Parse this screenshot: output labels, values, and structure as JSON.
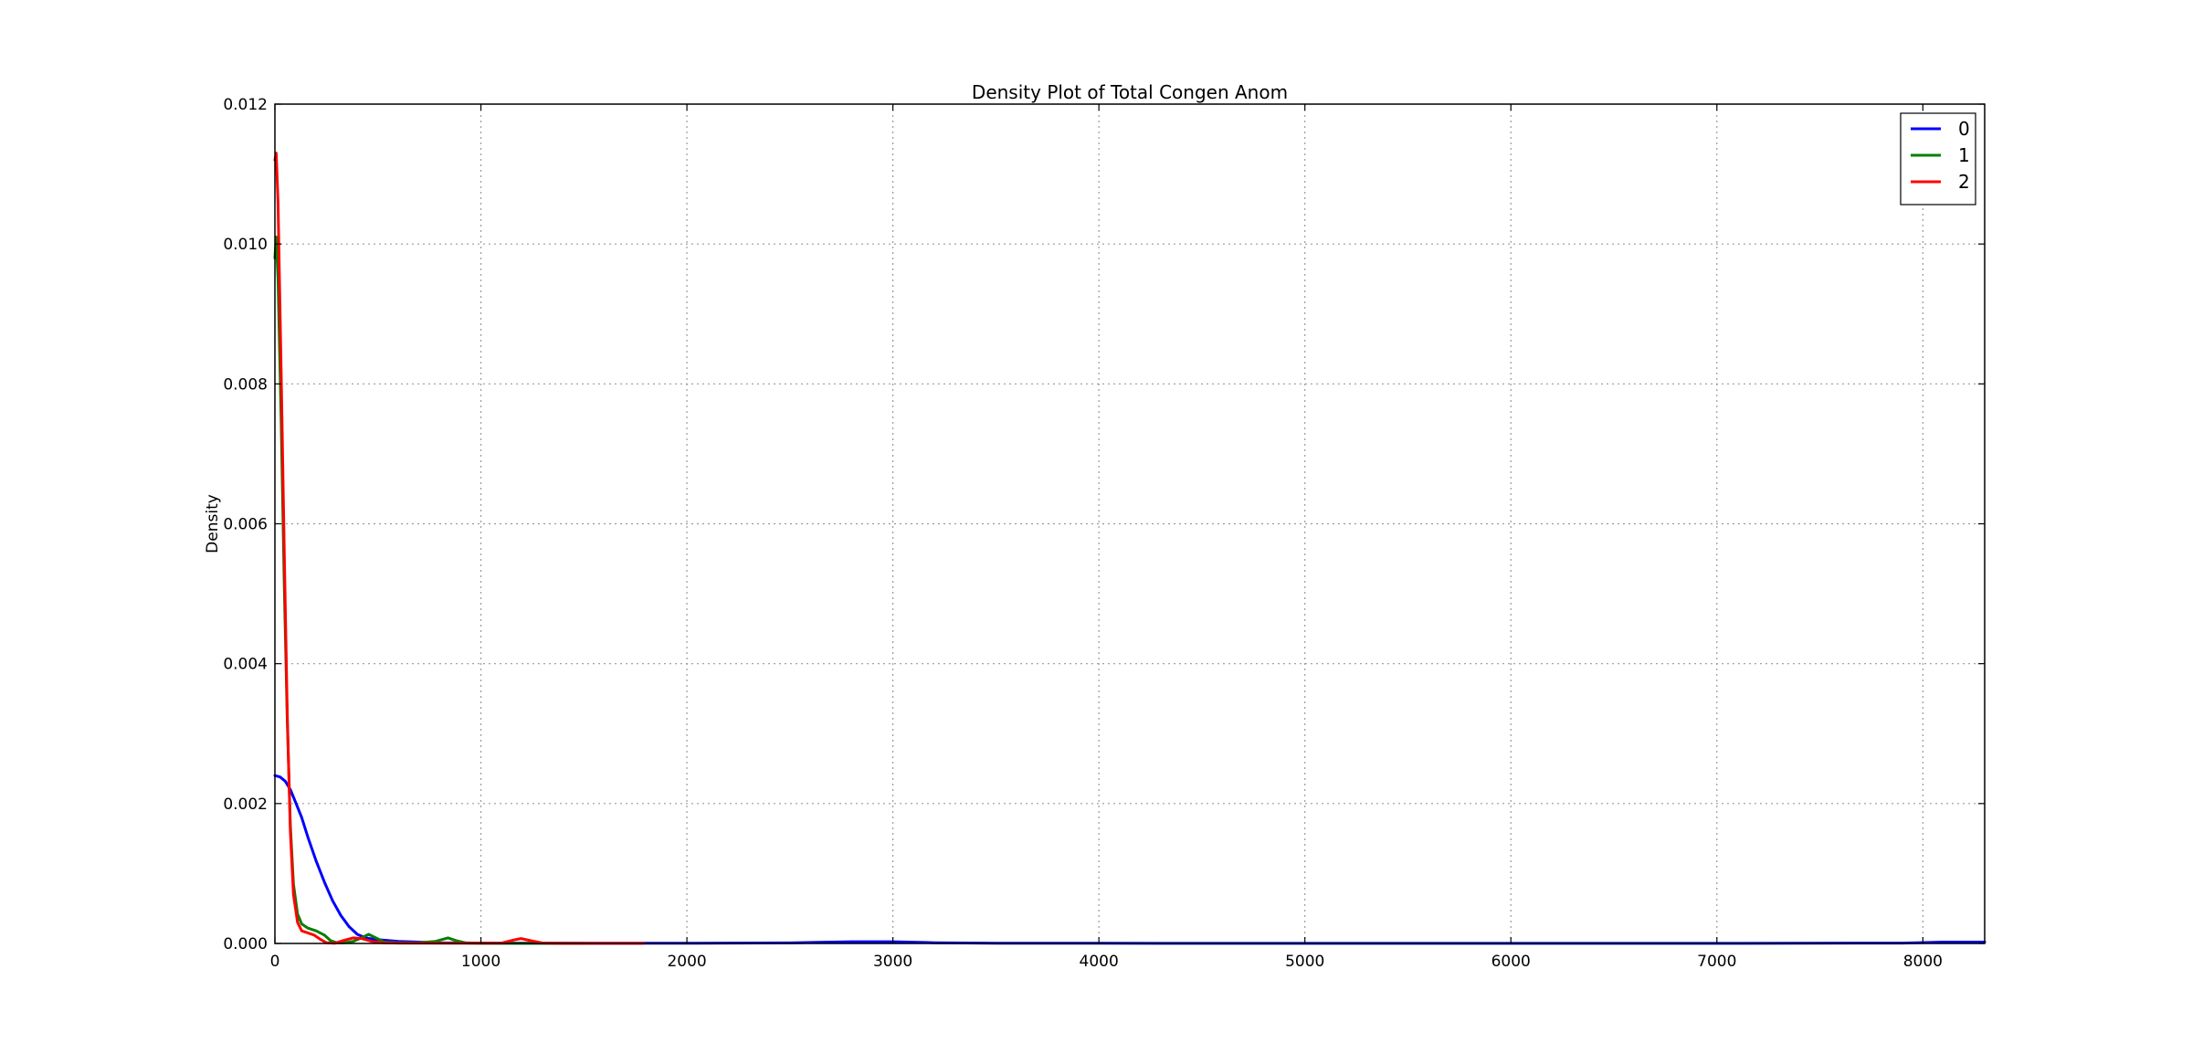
{
  "chart_data": {
    "type": "line",
    "title": "Density Plot of Total Congen Anom",
    "xlabel": "",
    "ylabel": "Density",
    "xlim": [
      0,
      8300
    ],
    "ylim": [
      0,
      0.012
    ],
    "x_ticks": [
      0,
      1000,
      2000,
      3000,
      4000,
      5000,
      6000,
      7000,
      8000
    ],
    "x_tick_labels": [
      "0",
      "1000",
      "2000",
      "3000",
      "4000",
      "5000",
      "6000",
      "7000",
      "8000"
    ],
    "y_ticks": [
      0,
      0.002,
      0.004,
      0.006,
      0.008,
      0.01,
      0.012
    ],
    "y_tick_labels": [
      "0.000",
      "0.002",
      "0.004",
      "0.006",
      "0.008",
      "0.010",
      "0.012"
    ],
    "grid": true,
    "legend_position": "top-right",
    "series": [
      {
        "name": "0",
        "color": "#0000ff",
        "points": [
          [
            0,
            0.0024
          ],
          [
            25,
            0.00238
          ],
          [
            50,
            0.00232
          ],
          [
            75,
            0.0022
          ],
          [
            100,
            0.00202
          ],
          [
            130,
            0.0018
          ],
          [
            160,
            0.00152
          ],
          [
            200,
            0.00118
          ],
          [
            240,
            0.00088
          ],
          [
            280,
            0.00061
          ],
          [
            320,
            0.0004
          ],
          [
            360,
            0.00024
          ],
          [
            400,
            0.00013
          ],
          [
            440,
            8e-05
          ],
          [
            480,
            6e-05
          ],
          [
            520,
            5e-05
          ],
          [
            600,
            3e-05
          ],
          [
            700,
            2e-05
          ],
          [
            800,
            1e-05
          ],
          [
            1000,
            5e-06
          ],
          [
            1500,
            2e-06
          ],
          [
            2000,
            2e-06
          ],
          [
            2500,
            8e-06
          ],
          [
            2800,
            2.5e-05
          ],
          [
            3000,
            2.5e-05
          ],
          [
            3200,
            1e-05
          ],
          [
            3500,
            3e-06
          ],
          [
            4000,
            2e-06
          ],
          [
            5000,
            1e-06
          ],
          [
            6000,
            1e-06
          ],
          [
            7000,
            1e-06
          ],
          [
            7900,
            5e-06
          ],
          [
            8100,
            2e-05
          ],
          [
            8300,
            2e-05
          ]
        ]
      },
      {
        "name": "1",
        "color": "#008000",
        "points": [
          [
            0,
            0.0098
          ],
          [
            6,
            0.0101
          ],
          [
            15,
            0.0095
          ],
          [
            30,
            0.0075
          ],
          [
            45,
            0.0052
          ],
          [
            60,
            0.0032
          ],
          [
            75,
            0.0017
          ],
          [
            90,
            0.00085
          ],
          [
            110,
            0.00042
          ],
          [
            130,
            0.00028
          ],
          [
            160,
            0.00022
          ],
          [
            200,
            0.00018
          ],
          [
            240,
            0.00012
          ],
          [
            270,
            4e-05
          ],
          [
            300,
            1e-05
          ],
          [
            340,
            1e-05
          ],
          [
            380,
            3e-05
          ],
          [
            420,
            8e-05
          ],
          [
            455,
            0.00013
          ],
          [
            490,
            8e-05
          ],
          [
            530,
            2e-05
          ],
          [
            600,
            1e-05
          ],
          [
            700,
            1e-05
          ],
          [
            780,
            3e-05
          ],
          [
            840,
            8e-05
          ],
          [
            880,
            4e-05
          ],
          [
            930,
            5e-06
          ],
          [
            1000,
            2e-06
          ],
          [
            1200,
            1e-06
          ],
          [
            1500,
            1e-06
          ]
        ]
      },
      {
        "name": "2",
        "color": "#ff0000",
        "points": [
          [
            0,
            0.0112
          ],
          [
            6,
            0.0113
          ],
          [
            15,
            0.0106
          ],
          [
            30,
            0.0082
          ],
          [
            45,
            0.0057
          ],
          [
            60,
            0.0033
          ],
          [
            75,
            0.0016
          ],
          [
            90,
            0.0007
          ],
          [
            110,
            0.0003
          ],
          [
            130,
            0.00018
          ],
          [
            160,
            0.00015
          ],
          [
            190,
            0.00012
          ],
          [
            220,
            6e-05
          ],
          [
            250,
            1e-05
          ],
          [
            290,
            2e-06
          ],
          [
            330,
            4e-05
          ],
          [
            380,
            8e-05
          ],
          [
            420,
            7e-05
          ],
          [
            470,
            3e-05
          ],
          [
            520,
            1e-05
          ],
          [
            600,
            5e-06
          ],
          [
            900,
            2e-06
          ],
          [
            1100,
            5e-06
          ],
          [
            1160,
            5e-05
          ],
          [
            1195,
            7e-05
          ],
          [
            1240,
            4e-05
          ],
          [
            1300,
            5e-06
          ],
          [
            1400,
            1e-06
          ],
          [
            1600,
            1e-06
          ],
          [
            1790,
            1e-06
          ]
        ]
      }
    ]
  }
}
